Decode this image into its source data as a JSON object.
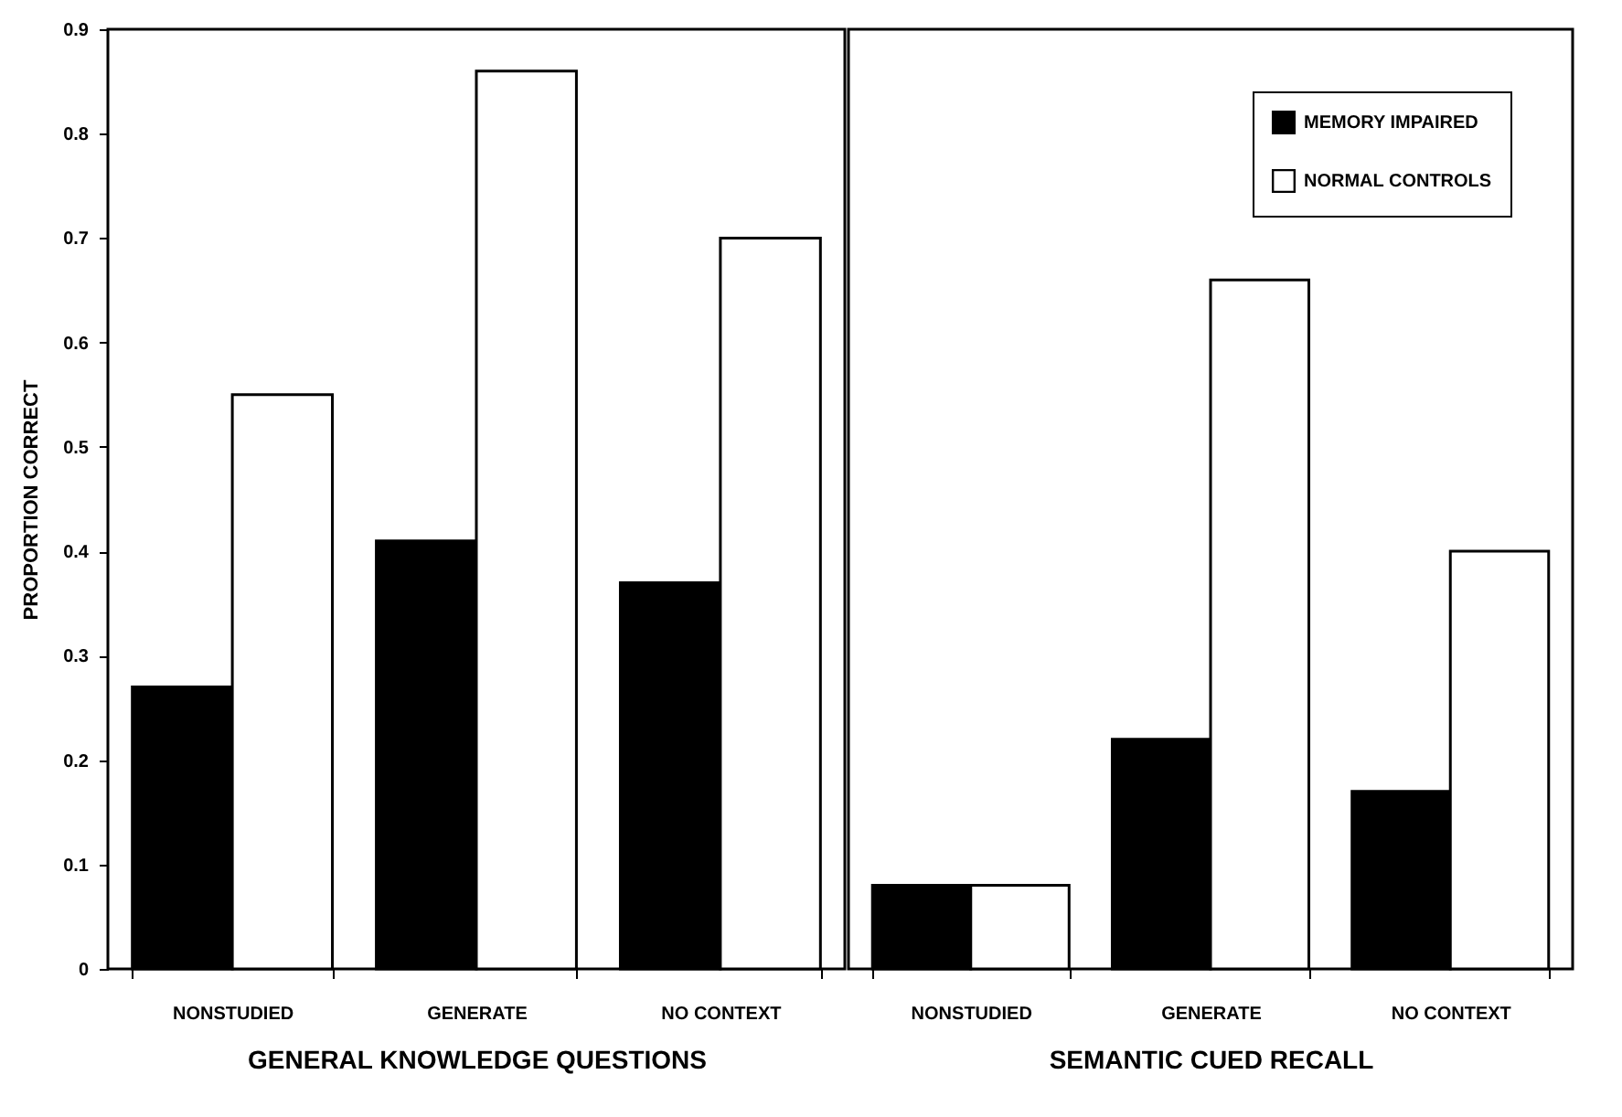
{
  "chart_data": [
    {
      "type": "bar",
      "xlabel": "GENERAL KNOWLEDGE QUESTIONS",
      "ylabel": "PROPORTION CORRECT",
      "categories": [
        "NONSTUDIED",
        "GENERATE",
        "NO CONTEXT"
      ],
      "series": [
        {
          "color": "#000000",
          "values": [
            0.27,
            0.41,
            0.37
          ]
        },
        {
          "color": "#ffffff",
          "values": [
            0.55,
            0.86,
            0.7
          ]
        }
      ],
      "ylim": [
        0,
        0.9
      ],
      "yticks": [
        0,
        0.1,
        0.2,
        0.3,
        0.4,
        0.5,
        0.6,
        0.7,
        0.8,
        0.9
      ]
    },
    {
      "type": "bar",
      "xlabel": "SEMANTIC CUED RECALL",
      "categories": [
        "NONSTUDIED",
        "GENERATE",
        "NO CONTEXT"
      ],
      "series": [
        {
          "name": "MEMORY IMPAIRED",
          "color": "#000000",
          "values": [
            0.08,
            0.22,
            0.17
          ]
        },
        {
          "name": "NORMAL CONTROLS",
          "color": "#ffffff",
          "values": [
            0.08,
            0.66,
            0.4
          ]
        }
      ],
      "ylim": [
        0,
        0.9
      ],
      "yticks": [
        0,
        0.1,
        0.2,
        0.3,
        0.4,
        0.5,
        0.6,
        0.7,
        0.8,
        0.9
      ],
      "tick_labels": "x",
      "legend": "top right"
    }
  ]
}
